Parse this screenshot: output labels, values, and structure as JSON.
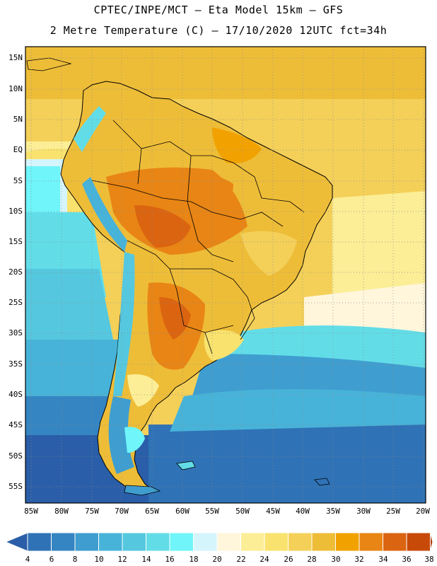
{
  "header": {
    "line1": "CPTEC/INPE/MCT –  Eta Model 15km – GFS",
    "line2": "2 Metre Temperature (C) – 17/10/2020 12UTC fct=34h"
  },
  "axes": {
    "lat_labels": [
      "15N",
      "10N",
      "5N",
      "EQ",
      "5S",
      "10S",
      "15S",
      "20S",
      "25S",
      "30S",
      "35S",
      "40S",
      "45S",
      "50S",
      "55S"
    ],
    "lon_labels": [
      "85W",
      "80W",
      "75W",
      "70W",
      "65W",
      "60W",
      "55W",
      "50W",
      "45W",
      "40W",
      "35W",
      "30W",
      "25W",
      "20W"
    ]
  },
  "colorbar": {
    "labels": [
      "4",
      "6",
      "8",
      "10",
      "12",
      "14",
      "16",
      "18",
      "20",
      "22",
      "24",
      "26",
      "28",
      "30",
      "32",
      "34",
      "36",
      "38"
    ],
    "colors": [
      "#2a5ea8",
      "#2f72b6",
      "#3585c2",
      "#3f9ecf",
      "#47b3d9",
      "#55c8df",
      "#62dde8",
      "#6ff5fa",
      "#d5f5fc",
      "#fff6dc",
      "#fcee96",
      "#f9e36e",
      "#f4d059",
      "#eebd38",
      "#f2a200",
      "#e88515",
      "#db6410",
      "#c84a08",
      "#b03a0a"
    ]
  },
  "map_data": {
    "region": "South America",
    "variable": "2 Metre Temperature (C)",
    "lat_range": [
      "15N",
      "55S"
    ],
    "lon_range": [
      "85W",
      "20W"
    ]
  }
}
